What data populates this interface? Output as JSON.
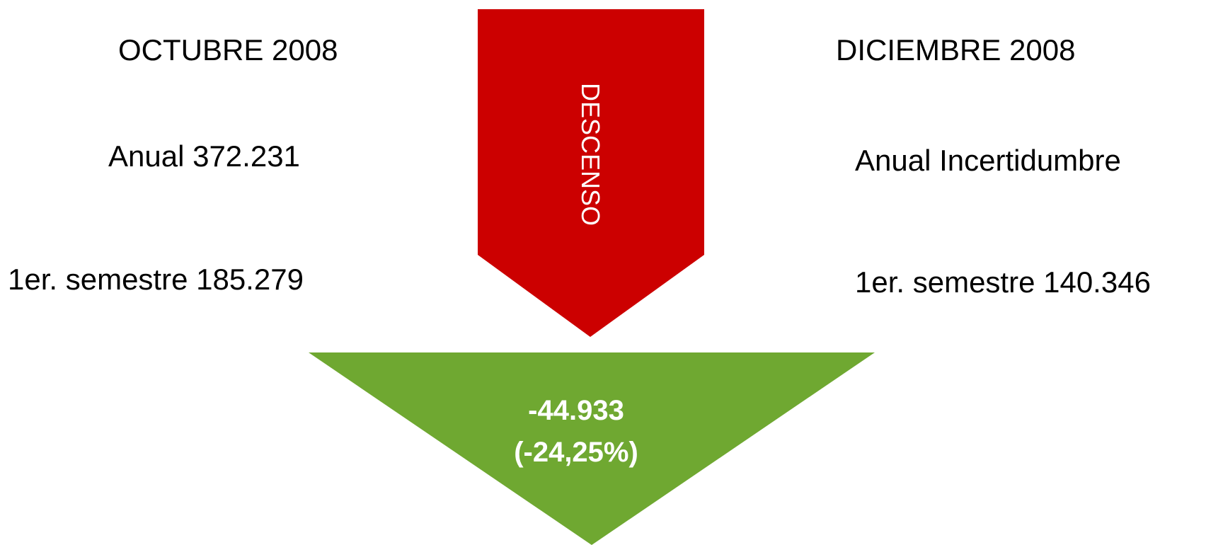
{
  "left_column": {
    "heading": "OCTUBRE 2008",
    "annual": "Anual  372.231",
    "semester": "1er. semestre 185.279"
  },
  "right_column": {
    "heading": "DICIEMBRE 2008",
    "annual": "Anual  Incertidumbre",
    "semester": "1er. semestre  140.346"
  },
  "arrow": {
    "label": "DESCENSO",
    "color": "#cc0000"
  },
  "result": {
    "value": "-44.933",
    "percent": "(-24,25%)",
    "color": "#6fa831"
  }
}
